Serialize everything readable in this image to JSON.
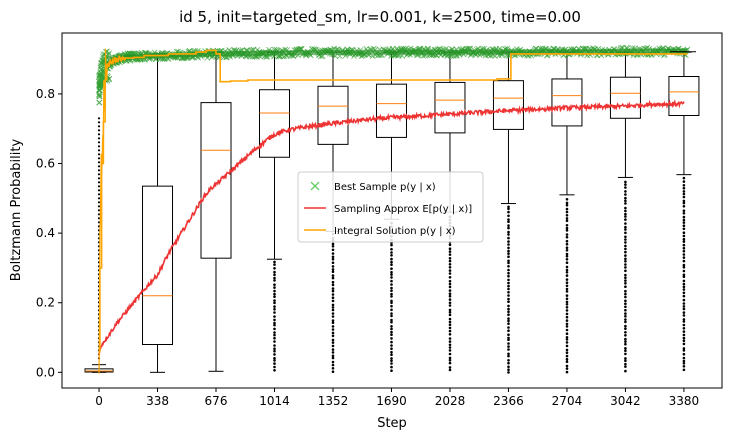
{
  "chart_data": {
    "type": "box+line",
    "title": "id 5, init=targeted_sm, lr=0.001, k=2500, time=0.00",
    "xlabel": "Step",
    "ylabel": "Boltzmann Probability",
    "xlim": [
      -214,
      3600
    ],
    "ylim": [
      -0.045,
      0.975
    ],
    "x_ticks": [
      0,
      338,
      676,
      1014,
      1352,
      1690,
      2028,
      2366,
      2704,
      3042,
      3380
    ],
    "x_tick_labels": [
      "0",
      "338",
      "676",
      "1014",
      "1352",
      "1690",
      "2028",
      "2366",
      "2704",
      "3042",
      "3380"
    ],
    "y_ticks": [
      0.0,
      0.2,
      0.4,
      0.6,
      0.8
    ],
    "y_tick_labels": [
      "0.0",
      "0.2",
      "0.4",
      "0.6",
      "0.8"
    ],
    "grid": false,
    "legend": {
      "position": "center",
      "entries": [
        {
          "label": "Best Sample p(y | x)",
          "color": "#66cc66",
          "marker": "x"
        },
        {
          "label": "Sampling Approx E[p(y | x)]",
          "color": "#ee3333",
          "marker": "line"
        },
        {
          "label": "Integral Solution p(y | x)",
          "color": "#ffa500",
          "marker": "line"
        }
      ]
    },
    "boxes": [
      {
        "x": 0,
        "q1": 0.001,
        "median": 0.004,
        "q3": 0.01,
        "whisker_low": 0.0,
        "whisker_high": 0.022,
        "outliers_low": [],
        "outliers_high_max": 0.73
      },
      {
        "x": 338,
        "q1": 0.08,
        "median": 0.22,
        "q3": 0.535,
        "whisker_low": 0.0,
        "whisker_high": 0.915,
        "outliers_low": [],
        "outliers_high_max": null
      },
      {
        "x": 676,
        "q1": 0.328,
        "median": 0.638,
        "q3": 0.775,
        "whisker_low": 0.003,
        "whisker_high": 0.92,
        "outliers_low": [],
        "outliers_high_max": null
      },
      {
        "x": 1014,
        "q1": 0.618,
        "median": 0.745,
        "q3": 0.812,
        "whisker_low": 0.325,
        "whisker_high": 0.92,
        "outliers_low": [
          0.0,
          0.32
        ],
        "outliers_high_max": null
      },
      {
        "x": 1352,
        "q1": 0.655,
        "median": 0.765,
        "q3": 0.822,
        "whisker_low": 0.405,
        "whisker_high": 0.92,
        "outliers_low": [
          0.0,
          0.4
        ],
        "outliers_high_max": null
      },
      {
        "x": 1690,
        "q1": 0.675,
        "median": 0.772,
        "q3": 0.828,
        "whisker_low": 0.44,
        "whisker_high": 0.92,
        "outliers_low": [
          0.0,
          0.43
        ],
        "outliers_high_max": null
      },
      {
        "x": 2028,
        "q1": 0.688,
        "median": 0.782,
        "q3": 0.833,
        "whisker_low": 0.46,
        "whisker_high": 0.92,
        "outliers_low": [
          0.0,
          0.45
        ],
        "outliers_high_max": null
      },
      {
        "x": 2366,
        "q1": 0.698,
        "median": 0.788,
        "q3": 0.838,
        "whisker_low": 0.485,
        "whisker_high": 0.92,
        "outliers_low": [
          0.0,
          0.48
        ],
        "outliers_high_max": null
      },
      {
        "x": 2704,
        "q1": 0.708,
        "median": 0.795,
        "q3": 0.843,
        "whisker_low": 0.51,
        "whisker_high": 0.92,
        "outliers_low": [
          0.0,
          0.5
        ],
        "outliers_high_max": null
      },
      {
        "x": 3042,
        "q1": 0.73,
        "median": 0.802,
        "q3": 0.848,
        "whisker_low": 0.56,
        "whisker_high": 0.92,
        "outliers_low": [
          0.0,
          0.55
        ],
        "outliers_high_max": null
      },
      {
        "x": 3380,
        "q1": 0.738,
        "median": 0.806,
        "q3": 0.85,
        "whisker_low": 0.568,
        "whisker_high": 0.92,
        "outliers_low": [
          0.0,
          0.56
        ],
        "outliers_high_max": null
      }
    ],
    "series": [
      {
        "name": "Sampling Approx E[p(y | x)]",
        "color": "#ee3333",
        "x": [
          0,
          10,
          30,
          60,
          100,
          150,
          200,
          250,
          300,
          338,
          400,
          450,
          500,
          550,
          600,
          650,
          676,
          720,
          800,
          900,
          1000,
          1050,
          1100,
          1200,
          1300,
          1400,
          1500,
          1600,
          1690,
          1800,
          2028,
          2366,
          2704,
          3042,
          3200,
          3380
        ],
        "y": [
          0.05,
          0.075,
          0.09,
          0.11,
          0.14,
          0.17,
          0.2,
          0.23,
          0.26,
          0.28,
          0.34,
          0.38,
          0.42,
          0.46,
          0.5,
          0.53,
          0.54,
          0.56,
          0.595,
          0.64,
          0.68,
          0.69,
          0.697,
          0.705,
          0.712,
          0.718,
          0.724,
          0.728,
          0.732,
          0.735,
          0.742,
          0.752,
          0.76,
          0.765,
          0.77,
          0.772
        ]
      },
      {
        "name": "Integral Solution p(y | x)",
        "color": "#ffa500",
        "x": [
          0,
          5,
          15,
          25,
          35,
          45,
          60,
          80,
          100,
          150,
          200,
          260,
          338,
          400,
          500,
          560,
          620,
          676,
          700,
          760,
          860,
          1000,
          1300,
          1690,
          2028,
          2300,
          2366,
          2380,
          2704,
          3042,
          3380,
          3400
        ],
        "y": [
          0.06,
          0.3,
          0.6,
          0.72,
          0.84,
          0.88,
          0.89,
          0.895,
          0.9,
          0.903,
          0.905,
          0.91,
          0.91,
          0.915,
          0.915,
          0.92,
          0.925,
          0.915,
          0.835,
          0.837,
          0.84,
          0.84,
          0.84,
          0.84,
          0.84,
          0.843,
          0.843,
          0.915,
          0.915,
          0.915,
          0.915,
          0.915
        ]
      },
      {
        "name": "Best Sample p(y | x)",
        "color": "#33aa33",
        "x": [
          0,
          10,
          20,
          40,
          80,
          150,
          338,
          676,
          1014,
          1690,
          2366,
          3042,
          3380,
          3400
        ],
        "y": [
          0.81,
          0.84,
          0.87,
          0.88,
          0.895,
          0.905,
          0.91,
          0.915,
          0.918,
          0.92,
          0.92,
          0.922,
          0.922,
          0.922
        ]
      }
    ]
  }
}
